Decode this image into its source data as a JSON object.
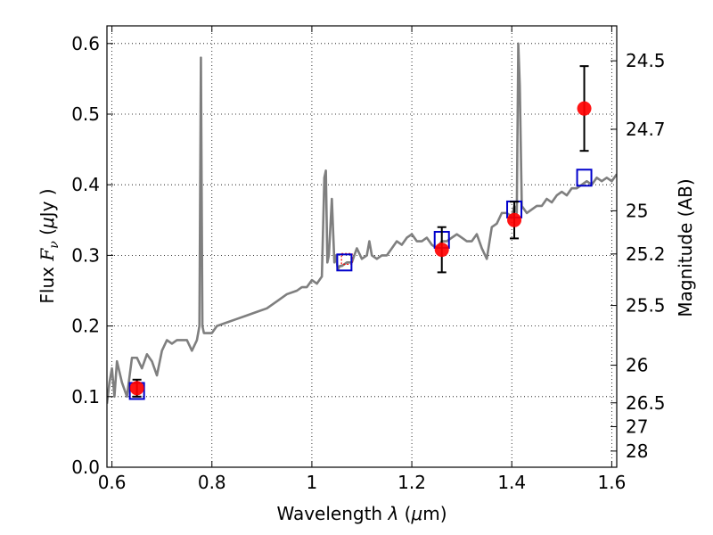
{
  "chart_data": {
    "type": "line",
    "xlabel_parts": [
      "Wavelength ",
      "λ",
      " (",
      "μ",
      "m)"
    ],
    "ylabel_parts": [
      "Flux ",
      "F",
      "ν",
      " (",
      "μ",
      "Jy )"
    ],
    "y2label": "Magnitude (AB)",
    "xlim": [
      0.59,
      1.61
    ],
    "ylim": [
      0.0,
      0.625
    ],
    "grid": true,
    "x_ticks": [
      0.6,
      0.8,
      1.0,
      1.2,
      1.4,
      1.6
    ],
    "x_tick_labels": [
      "0.6",
      "0.8",
      "1",
      "1.2",
      "1.4",
      "1.6"
    ],
    "y_ticks": [
      0.0,
      0.1,
      0.2,
      0.3,
      0.4,
      0.5,
      0.6
    ],
    "y_tick_labels": [
      "0.0",
      "0.1",
      "0.2",
      "0.3",
      "0.4",
      "0.5",
      "0.6"
    ],
    "mag_ticks": [
      {
        "flux": 0.5755,
        "label": "24.5"
      },
      {
        "flux": 0.4786,
        "label": "24.7"
      },
      {
        "flux": 0.3631,
        "label": "25"
      },
      {
        "flux": 0.302,
        "label": "25.2"
      },
      {
        "flux": 0.2291,
        "label": "25.5"
      },
      {
        "flux": 0.1445,
        "label": "26"
      },
      {
        "flux": 0.0912,
        "label": "26.5"
      },
      {
        "flux": 0.0575,
        "label": "27"
      },
      {
        "flux": 0.0229,
        "label": "28"
      }
    ],
    "colors": {
      "model": "#7f7f7f",
      "observed": "#ff0000",
      "model_boxes": "#0000cc",
      "errorbars": "#000000",
      "dashed_box": "#ff0000"
    },
    "series": [
      {
        "kind": "spectrum",
        "x": [
          0.59,
          0.595,
          0.6,
          0.605,
          0.61,
          0.62,
          0.63,
          0.64,
          0.65,
          0.66,
          0.665,
          0.67,
          0.68,
          0.69,
          0.7,
          0.71,
          0.72,
          0.73,
          0.74,
          0.75,
          0.76,
          0.77,
          0.775,
          0.778,
          0.781,
          0.784,
          0.79,
          0.8,
          0.81,
          0.83,
          0.85,
          0.87,
          0.89,
          0.91,
          0.93,
          0.95,
          0.97,
          0.98,
          0.99,
          1.0,
          1.01,
          1.02,
          1.025,
          1.028,
          1.031,
          1.034,
          1.04,
          1.045,
          1.048,
          1.052,
          1.056,
          1.06,
          1.07,
          1.08,
          1.09,
          1.1,
          1.11,
          1.115,
          1.12,
          1.13,
          1.14,
          1.15,
          1.16,
          1.17,
          1.18,
          1.19,
          1.2,
          1.21,
          1.22,
          1.23,
          1.24,
          1.25,
          1.26,
          1.27,
          1.28,
          1.29,
          1.3,
          1.31,
          1.32,
          1.33,
          1.34,
          1.35,
          1.36,
          1.37,
          1.38,
          1.39,
          1.4,
          1.405,
          1.41,
          1.413,
          1.416,
          1.42,
          1.43,
          1.44,
          1.45,
          1.46,
          1.47,
          1.48,
          1.49,
          1.5,
          1.51,
          1.52,
          1.53,
          1.54,
          1.55,
          1.56,
          1.57,
          1.58,
          1.59,
          1.6,
          1.61
        ],
        "y": [
          0.09,
          0.12,
          0.14,
          0.1,
          0.15,
          0.12,
          0.1,
          0.155,
          0.155,
          0.14,
          0.15,
          0.16,
          0.15,
          0.13,
          0.165,
          0.18,
          0.175,
          0.18,
          0.18,
          0.18,
          0.165,
          0.18,
          0.2,
          0.58,
          0.2,
          0.19,
          0.19,
          0.19,
          0.2,
          0.205,
          0.21,
          0.215,
          0.22,
          0.225,
          0.235,
          0.245,
          0.25,
          0.255,
          0.255,
          0.265,
          0.26,
          0.27,
          0.41,
          0.42,
          0.29,
          0.3,
          0.38,
          0.29,
          0.3,
          0.28,
          0.285,
          0.285,
          0.29,
          0.29,
          0.31,
          0.295,
          0.3,
          0.32,
          0.3,
          0.295,
          0.3,
          0.3,
          0.31,
          0.32,
          0.315,
          0.325,
          0.33,
          0.32,
          0.32,
          0.325,
          0.315,
          0.31,
          0.32,
          0.32,
          0.325,
          0.33,
          0.325,
          0.32,
          0.32,
          0.33,
          0.31,
          0.295,
          0.34,
          0.345,
          0.36,
          0.36,
          0.355,
          0.37,
          0.36,
          0.6,
          0.54,
          0.37,
          0.36,
          0.365,
          0.37,
          0.37,
          0.38,
          0.375,
          0.385,
          0.39,
          0.385,
          0.395,
          0.395,
          0.4,
          0.405,
          0.4,
          0.41,
          0.405,
          0.41,
          0.405,
          0.415
        ]
      },
      {
        "kind": "model_photometry",
        "points": [
          {
            "x": 0.65,
            "y": 0.108
          },
          {
            "x": 1.065,
            "y": 0.29
          },
          {
            "x": 1.26,
            "y": 0.322
          },
          {
            "x": 1.405,
            "y": 0.365
          },
          {
            "x": 1.545,
            "y": 0.41
          }
        ]
      },
      {
        "kind": "observed_photometry",
        "points": [
          {
            "x": 0.65,
            "y": 0.112,
            "err": 0.012
          },
          {
            "x": 1.26,
            "y": 0.308,
            "err": 0.032
          },
          {
            "x": 1.405,
            "y": 0.35,
            "err": 0.026
          },
          {
            "x": 1.545,
            "y": 0.508,
            "err": 0.06
          }
        ]
      },
      {
        "kind": "dashed_box",
        "points": [
          {
            "x": 1.07,
            "y": 0.295
          }
        ]
      }
    ]
  }
}
